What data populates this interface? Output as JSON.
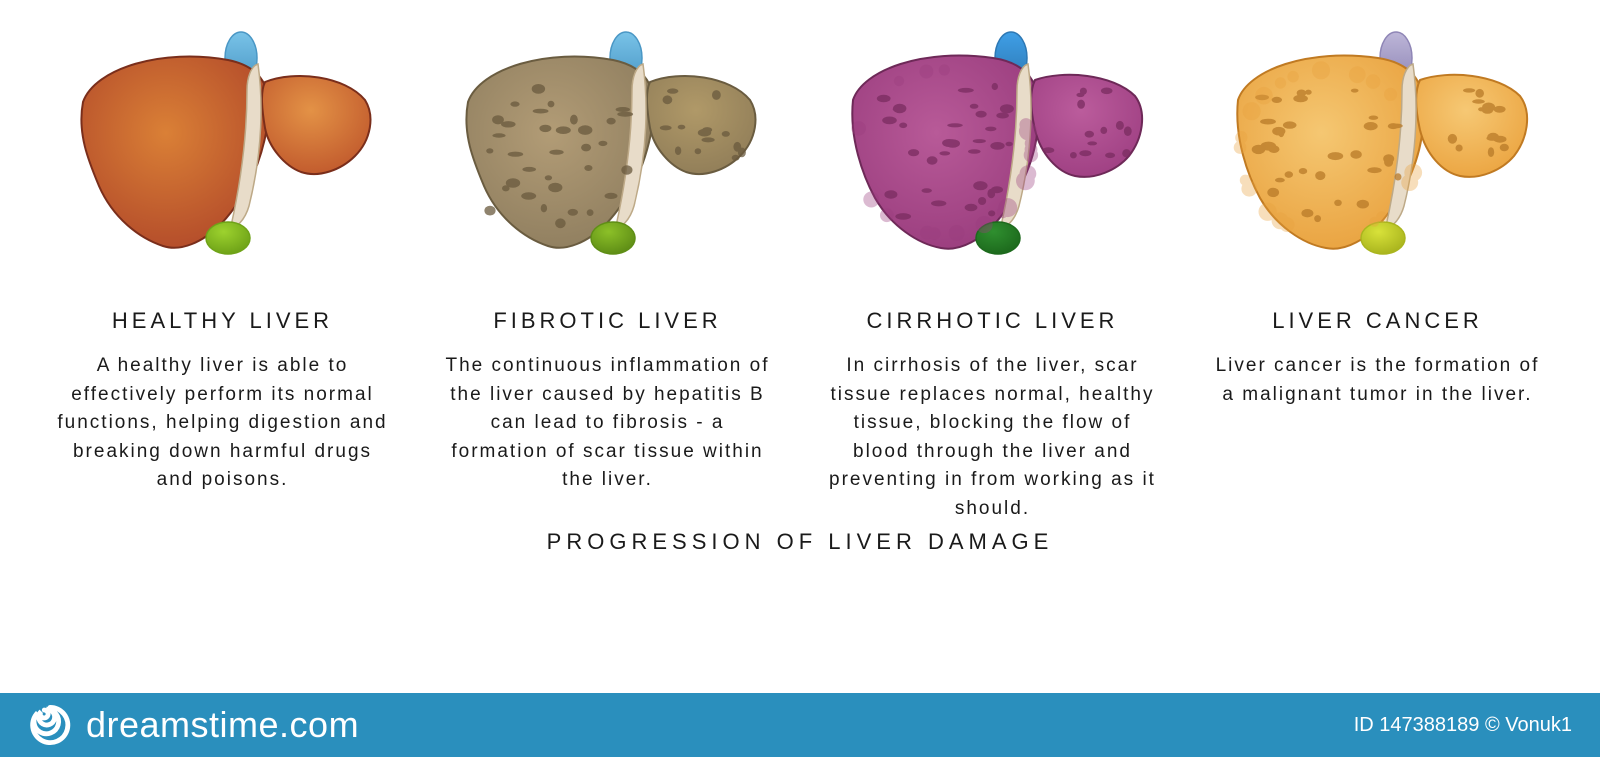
{
  "infographic": {
    "type": "infographic",
    "caption": "PROGRESSION OF LIVER DAMAGE",
    "background_color": "#ffffff",
    "text_color": "#1a1a1a",
    "title_fontsize": 22,
    "title_letter_spacing": 4,
    "desc_fontsize": 19,
    "desc_letter_spacing": 2,
    "caption_fontsize": 22,
    "caption_letter_spacing": 5,
    "stages": [
      {
        "key": "healthy",
        "title": "HEALTHY LIVER",
        "description": "A healthy liver is able to effectively perform its normal functions, helping digestion and breaking down harmful drugs and poisons.",
        "liver": {
          "left_lobe_fill": "#b24a2a",
          "left_lobe_highlight": "#da8036",
          "right_lobe_fill": "#c0582c",
          "right_lobe_highlight": "#e39246",
          "outline": "#7a2e1b",
          "ligament_fill": "#e8dcc9",
          "ligament_outline": "#bda987",
          "vessel_fill": "#79c3e8",
          "vessel_outline": "#4a97c5",
          "gallbladder_fill": "#9dd22e",
          "gallbladder_outline": "#6fa318",
          "spots": false,
          "bumpy": false
        }
      },
      {
        "key": "fibrotic",
        "title": "FIBROTIC LIVER",
        "description": "The continuous inflammation of the liver caused by hepatitis B can lead to fibrosis - a formation of scar tissue within the liver.",
        "liver": {
          "left_lobe_fill": "#8f7e5f",
          "left_lobe_highlight": "#b29c76",
          "right_lobe_fill": "#907d58",
          "right_lobe_highlight": "#b09968",
          "outline": "#6a5c40",
          "ligament_fill": "#e8dcc9",
          "ligament_outline": "#bda987",
          "vessel_fill": "#79c3e8",
          "vessel_outline": "#4a97c5",
          "gallbladder_fill": "#8cc028",
          "gallbladder_outline": "#5f8e16",
          "spots": true,
          "spot_color": "#6a5a3e",
          "bumpy": false
        }
      },
      {
        "key": "cirrhotic",
        "title": "CIRRHOTIC LIVER",
        "description": "In cirrhosis of the liver, scar tissue replaces normal, healthy tissue, blocking the flow of blood through the liver and preventing in from working as it should.",
        "liver": {
          "left_lobe_fill": "#9a3d7e",
          "left_lobe_highlight": "#b85a98",
          "right_lobe_fill": "#9e3f82",
          "right_lobe_highlight": "#bb5c9c",
          "outline": "#6e2958",
          "ligament_fill": "#e8dcc9",
          "ligament_outline": "#bda987",
          "vessel_fill": "#3f9fe6",
          "vessel_outline": "#2d78b4",
          "gallbladder_fill": "#2f8f2f",
          "gallbladder_outline": "#1d6a1d",
          "spots": true,
          "spot_color": "#7a2c60",
          "bumpy": true
        }
      },
      {
        "key": "cancer",
        "title": "LIVER CANCER",
        "description": "Liver cancer is the formation of a malignant tumor in the liver.",
        "liver": {
          "left_lobe_fill": "#e9a23f",
          "left_lobe_highlight": "#f5c772",
          "right_lobe_fill": "#eba440",
          "right_lobe_highlight": "#f6c874",
          "outline": "#c07a22",
          "ligament_fill": "#e8dcc9",
          "ligament_outline": "#bda987",
          "vessel_fill": "#bdb6d8",
          "vessel_outline": "#8f86b6",
          "gallbladder_fill": "#d8e23a",
          "gallbladder_outline": "#aab51e",
          "spots": true,
          "spot_color": "#b87a28",
          "bumpy": true
        }
      }
    ]
  },
  "footer": {
    "bar_color": "#2a8fbd",
    "logo_color": "#ffffff",
    "site_text": "dreamstime.com",
    "credit_text": "ID 147388189 © Vonuk1",
    "text_color": "#ffffff",
    "site_fontsize": 36,
    "credit_fontsize": 20
  }
}
